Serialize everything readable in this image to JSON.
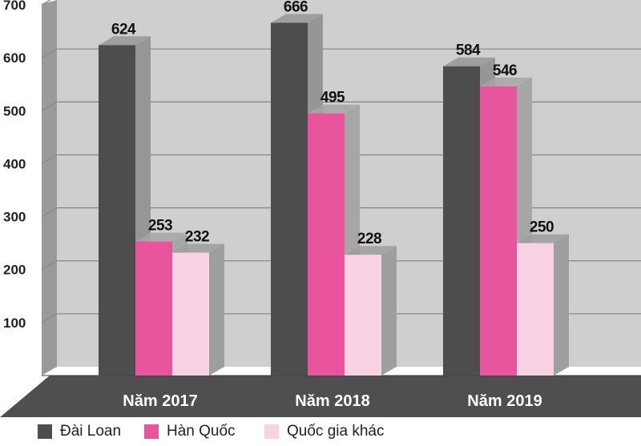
{
  "chart_data": {
    "type": "bar",
    "categories": [
      "Năm 2017",
      "Năm 2018",
      "Năm 2019"
    ],
    "series": [
      {
        "name": "Đài Loan",
        "values": [
          624,
          666,
          584
        ],
        "color": "#4d4d4f",
        "side_color": "#969696"
      },
      {
        "name": "Hàn Quốc",
        "values": [
          253,
          495,
          546
        ],
        "color": "#e8559d",
        "side_color": "#a6a6a6"
      },
      {
        "name": "Quốc gia khác",
        "values": [
          232,
          228,
          250
        ],
        "color": "#f9d3e3",
        "side_color": "#9e9e9e"
      }
    ],
    "y_ticks": [
      100,
      200,
      300,
      400,
      500,
      600,
      700
    ],
    "ylim": [
      0,
      700
    ],
    "grid": true,
    "legend_position": "bottom-left"
  }
}
